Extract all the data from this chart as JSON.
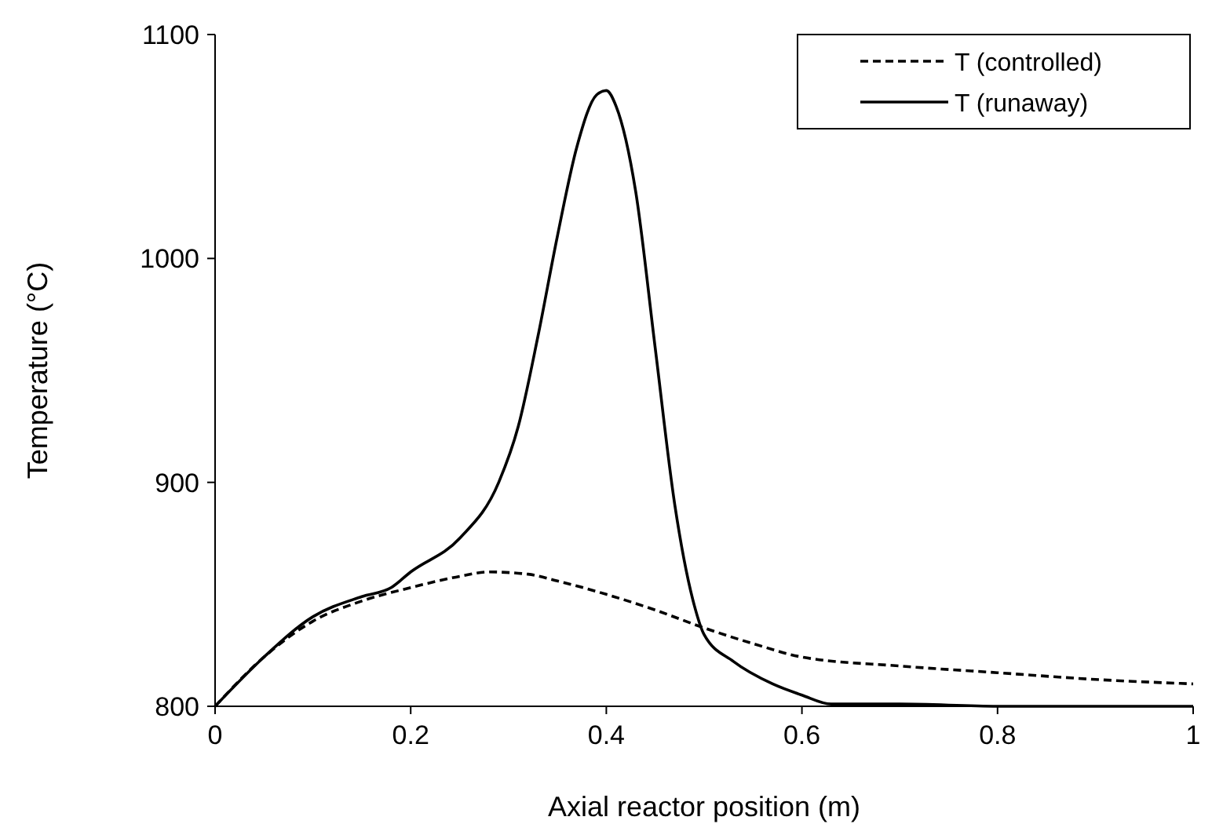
{
  "chart_data": {
    "type": "line",
    "xlabel": "Axial reactor position (m)",
    "ylabel": "Temperature (°C)",
    "xlim": [
      0,
      1
    ],
    "xticks": [
      0,
      0.2,
      0.4,
      0.6,
      0.8,
      1
    ],
    "ylim": [
      800,
      1100
    ],
    "yticks": [
      800,
      900,
      1000,
      1100
    ],
    "legend": "top right",
    "grid": false,
    "marker": "none",
    "series": [
      {
        "name": "T (controlled)",
        "color": "#000000",
        "line_style": "dashed",
        "x": [
          0,
          0.05,
          0.1,
          0.15,
          0.2,
          0.25,
          0.28,
          0.32,
          0.35,
          0.4,
          0.45,
          0.5,
          0.55,
          0.6,
          0.7,
          0.8,
          0.9,
          1
        ],
        "values": [
          800,
          822,
          838,
          847,
          853,
          858,
          860,
          859,
          856,
          850,
          843,
          835,
          828,
          822,
          818,
          815,
          812,
          810
        ]
      },
      {
        "name": "T (runaway)",
        "color": "#000000",
        "line_style": "solid",
        "x": [
          0,
          0.05,
          0.1,
          0.15,
          0.18,
          0.2,
          0.25,
          0.29,
          0.31,
          0.33,
          0.35,
          0.37,
          0.39,
          0.4,
          0.41,
          0.43,
          0.45,
          0.47,
          0.49,
          0.5,
          0.53,
          0.57,
          0.6,
          0.63,
          0.7,
          0.8,
          1
        ],
        "values": [
          800,
          822,
          840,
          849,
          853,
          860,
          875,
          900,
          925,
          965,
          1010,
          1050,
          1073,
          1075,
          1068,
          1030,
          960,
          890,
          845,
          832,
          820,
          810,
          805,
          801,
          801,
          800,
          800
        ]
      }
    ]
  }
}
